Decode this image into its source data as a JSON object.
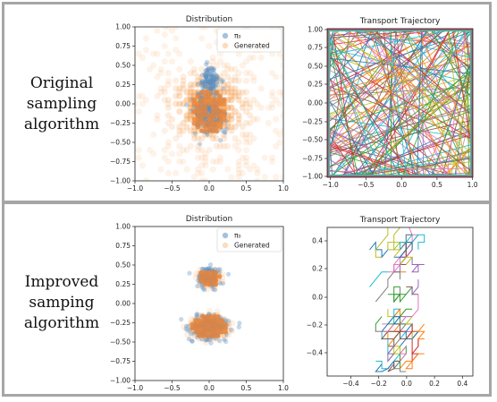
{
  "rows": [
    {
      "label_lines": [
        "Original",
        "sampling",
        "algorithm"
      ]
    },
    {
      "label_lines": [
        "Improved",
        "samping",
        "algorithm"
      ]
    }
  ],
  "colors": {
    "pi0": "#5b8fbf",
    "generated": "#f59a4a",
    "frame": "#a6a6a6"
  },
  "chart_data": [
    {
      "type": "scatter",
      "title": "Distribution",
      "xlim": [
        -1.0,
        1.0
      ],
      "ylim": [
        -1.0,
        1.0
      ],
      "x_ticks": [
        "−1.0",
        "−0.5",
        "0.0",
        "0.5",
        "1.0"
      ],
      "y_ticks": [
        "1.00",
        "0.75",
        "0.50",
        "0.25",
        "0.00",
        "−0.25",
        "−0.50",
        "−0.75",
        "−1.00"
      ],
      "legend_position": "top-right",
      "series": [
        {
          "name": "π₀",
          "pattern": "two clusters near (0.0, 0.3) and (0.0, −0.2)"
        },
        {
          "name": "Generated",
          "pattern": "wide spread on a 0.05 grid, denser near center"
        }
      ]
    },
    {
      "type": "line",
      "title": "Transport Trajectory",
      "xlim": [
        -1.0,
        1.0
      ],
      "ylim": [
        -1.0,
        1.0
      ],
      "x_ticks": [
        "−1.0",
        "−0.5",
        "0.0",
        "0.5",
        "1.0"
      ],
      "y_ticks": [
        "1.00",
        "0.75",
        "0.50",
        "0.25",
        "0.00",
        "−0.25",
        "−0.50",
        "−0.75",
        "−1.00"
      ]
    },
    {
      "type": "scatter",
      "title": "Distribution",
      "xlim": [
        -1.0,
        1.0
      ],
      "ylim": [
        -1.0,
        1.0
      ],
      "x_ticks": [
        "−1.0",
        "−0.5",
        "0.0",
        "0.5",
        "1.0"
      ],
      "y_ticks": [
        "1.00",
        "0.75",
        "0.50",
        "0.25",
        "0.00",
        "−0.25",
        "−0.50",
        "−0.75",
        "−1.00"
      ],
      "legend_position": "top-right",
      "series": [
        {
          "name": "π₀",
          "pattern": "two clusters near (0.0, 0.3) and (0.0, −0.3)"
        },
        {
          "name": "Generated",
          "pattern": "concentrated on the two clusters"
        }
      ]
    },
    {
      "type": "line",
      "title": "Transport Trajectory",
      "xlim": [
        -0.6,
        0.6
      ],
      "ylim": [
        -0.5,
        0.5
      ],
      "x_ticks": [
        "−0.4",
        "−0.2",
        "0.0",
        "0.2",
        "0.4"
      ],
      "y_ticks": [
        "0.4",
        "0.2",
        "0.0",
        "−0.2",
        "−0.4"
      ]
    }
  ]
}
